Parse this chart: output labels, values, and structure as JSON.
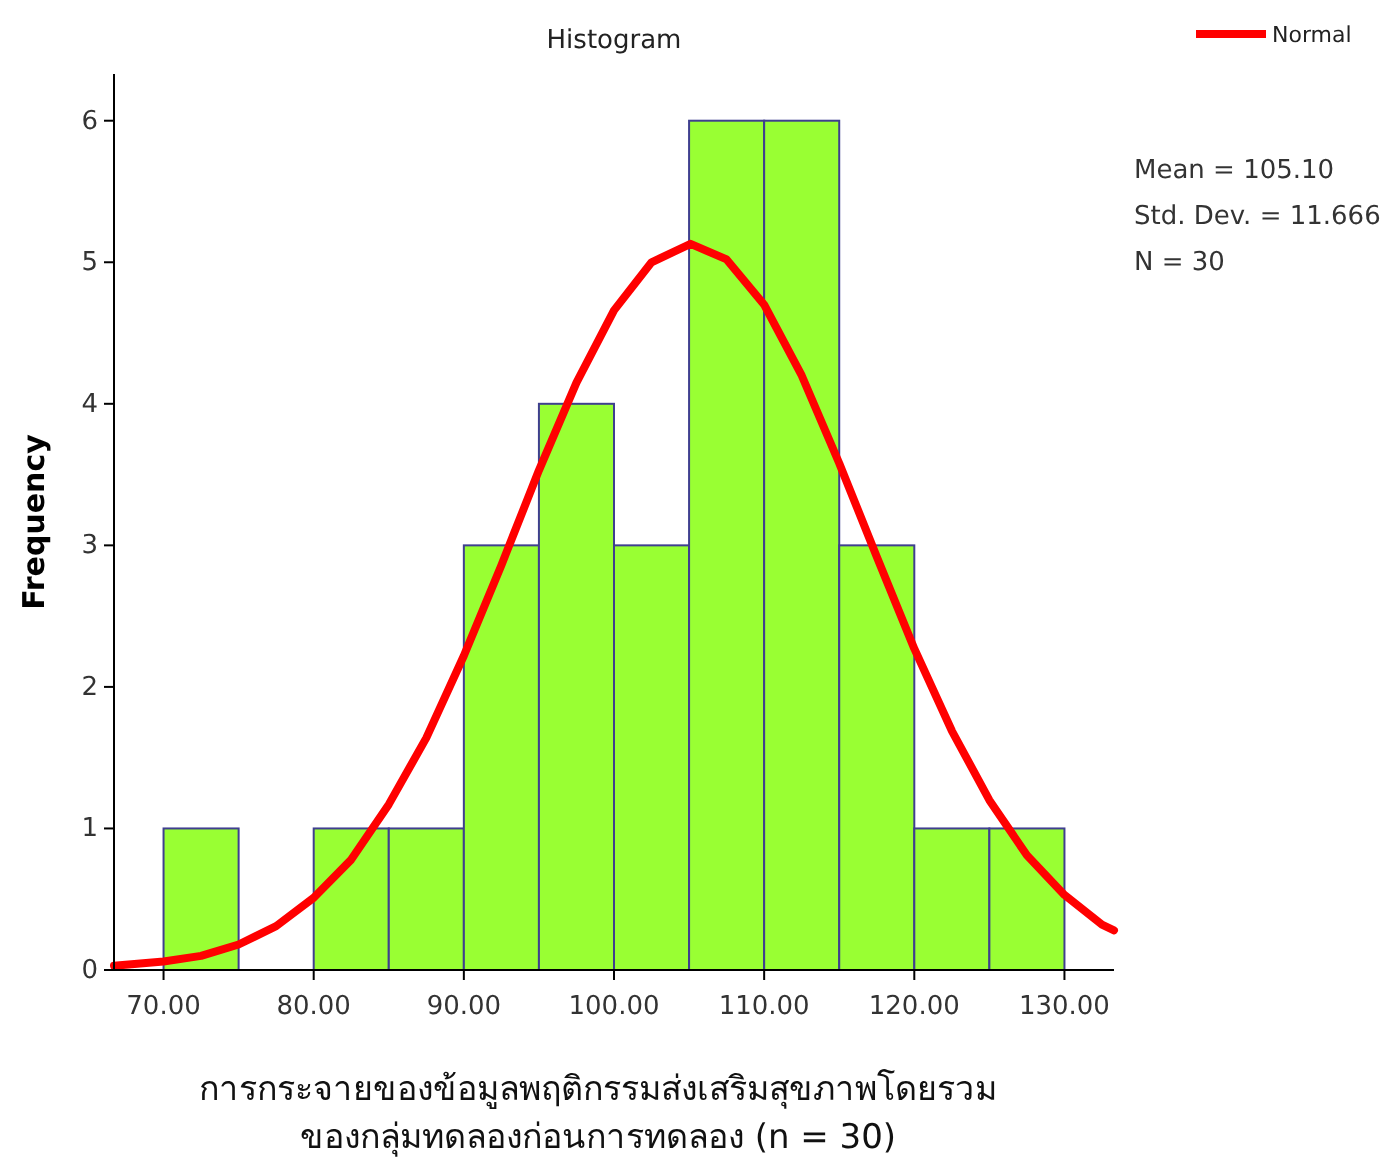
{
  "chart_data": {
    "type": "histogram",
    "title": "Histogram",
    "xlabel": "การกระจายของข้อมูลพฤติกรรมส่งเสริมสุขภาพโดยรวม\nของกลุ่มทดลองก่อนการทดลอง (n = 30)",
    "ylabel": "Frequency",
    "bins": [
      70,
      75,
      80,
      85,
      90,
      95,
      100,
      105,
      110,
      115,
      120,
      125,
      130
    ],
    "values": [
      1,
      0,
      1,
      1,
      3,
      4,
      3,
      6,
      6,
      3,
      1,
      1
    ],
    "color": "#99ff33",
    "series": [
      {
        "name": "Normal",
        "type": "line",
        "color": "#ff0000",
        "x": [
          66.7,
          70,
          72.5,
          75,
          77.5,
          80,
          82.5,
          85,
          87.5,
          90,
          92.5,
          95,
          97.5,
          100,
          102.5,
          105.1,
          107.5,
          110,
          112.5,
          115,
          117.5,
          120,
          122.5,
          125,
          127.5,
          130,
          132.5,
          133.3
        ],
        "values": [
          0.03,
          0.06,
          0.1,
          0.18,
          0.31,
          0.51,
          0.78,
          1.17,
          1.64,
          2.22,
          2.86,
          3.53,
          4.15,
          4.66,
          5.0,
          5.13,
          5.02,
          4.7,
          4.2,
          3.58,
          2.92,
          2.27,
          1.69,
          1.2,
          0.81,
          0.53,
          0.32,
          0.28
        ]
      }
    ],
    "xlim": [
      66.7,
      133.3
    ],
    "ylim": [
      0,
      6.33
    ],
    "xticks": [
      {
        "value": 70,
        "label": "70.00"
      },
      {
        "value": 80,
        "label": "80.00"
      },
      {
        "value": 90,
        "label": "90.00"
      },
      {
        "value": 100,
        "label": "100.00"
      },
      {
        "value": 110,
        "label": "110.00"
      },
      {
        "value": 120,
        "label": "120.00"
      },
      {
        "value": 130,
        "label": "130.00"
      }
    ],
    "yticks": [
      0,
      1,
      2,
      3,
      4,
      5,
      6
    ],
    "legend": "top right",
    "annotations": [
      "Mean = 105.10",
      "Std. Dev. = 11.666",
      "N = 30"
    ]
  }
}
